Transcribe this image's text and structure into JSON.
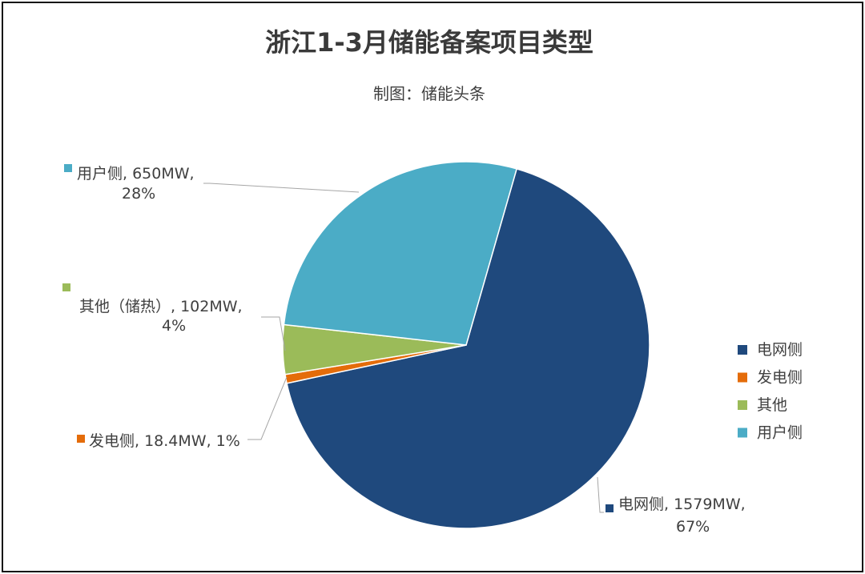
{
  "chart_data": {
    "type": "pie",
    "title": "浙江1-3月储能备案项目类型",
    "subtitle": "制图：储能头条",
    "slices": [
      {
        "name": "电网侧",
        "value": 1579,
        "unit": "MW",
        "percent": 67,
        "color": "#1f497d",
        "label_lines": [
          "电网侧, 1579MW,",
          "67%"
        ]
      },
      {
        "name": "发电侧",
        "value": 18.4,
        "unit": "MW",
        "percent": 1,
        "color": "#e46c0a",
        "label_lines": [
          "发电侧, 18.4MW, 1%"
        ]
      },
      {
        "name": "其他",
        "value": 102,
        "unit": "MW",
        "percent": 4,
        "color": "#9bbb59",
        "label_lines": [
          "其他（储热）, 102MW,",
          "4%"
        ]
      },
      {
        "name": "用户侧",
        "value": 650,
        "unit": "MW",
        "percent": 28,
        "color": "#4bacc6",
        "label_lines": [
          "用户侧, 650MW,",
          "28%"
        ]
      }
    ],
    "legend": {
      "position": "right",
      "entries": [
        "电网侧",
        "发电侧",
        "其他",
        "用户侧"
      ]
    }
  }
}
